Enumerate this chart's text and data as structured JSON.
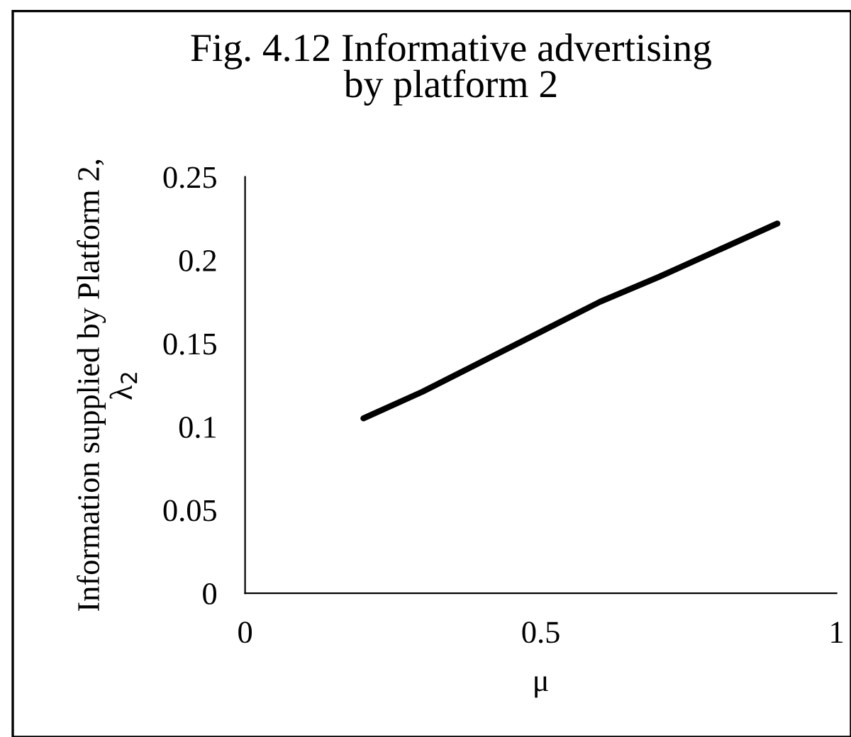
{
  "chart_data": {
    "type": "line",
    "title": "Fig. 4.12 Informative advertising\nby platform 2",
    "xlabel": "μ",
    "ylabel": "Information supplied by Platform 2,\nλ$_{2}$",
    "x": [
      0.2,
      0.3,
      0.4,
      0.5,
      0.6,
      0.7,
      0.8,
      0.9
    ],
    "series": [
      {
        "color": "#000000",
        "values": [
          0.105,
          0.121,
          0.139,
          0.157,
          0.175,
          0.19,
          0.206,
          0.222
        ]
      }
    ],
    "xlim": [
      0,
      1
    ],
    "xticks": [
      0,
      0.5,
      1
    ],
    "ylim": [
      0,
      0.25
    ],
    "yticks": [
      0,
      0.05,
      0.1,
      0.15,
      0.2,
      0.25
    ],
    "grid": false,
    "marker": "none",
    "line_style": "solid"
  }
}
